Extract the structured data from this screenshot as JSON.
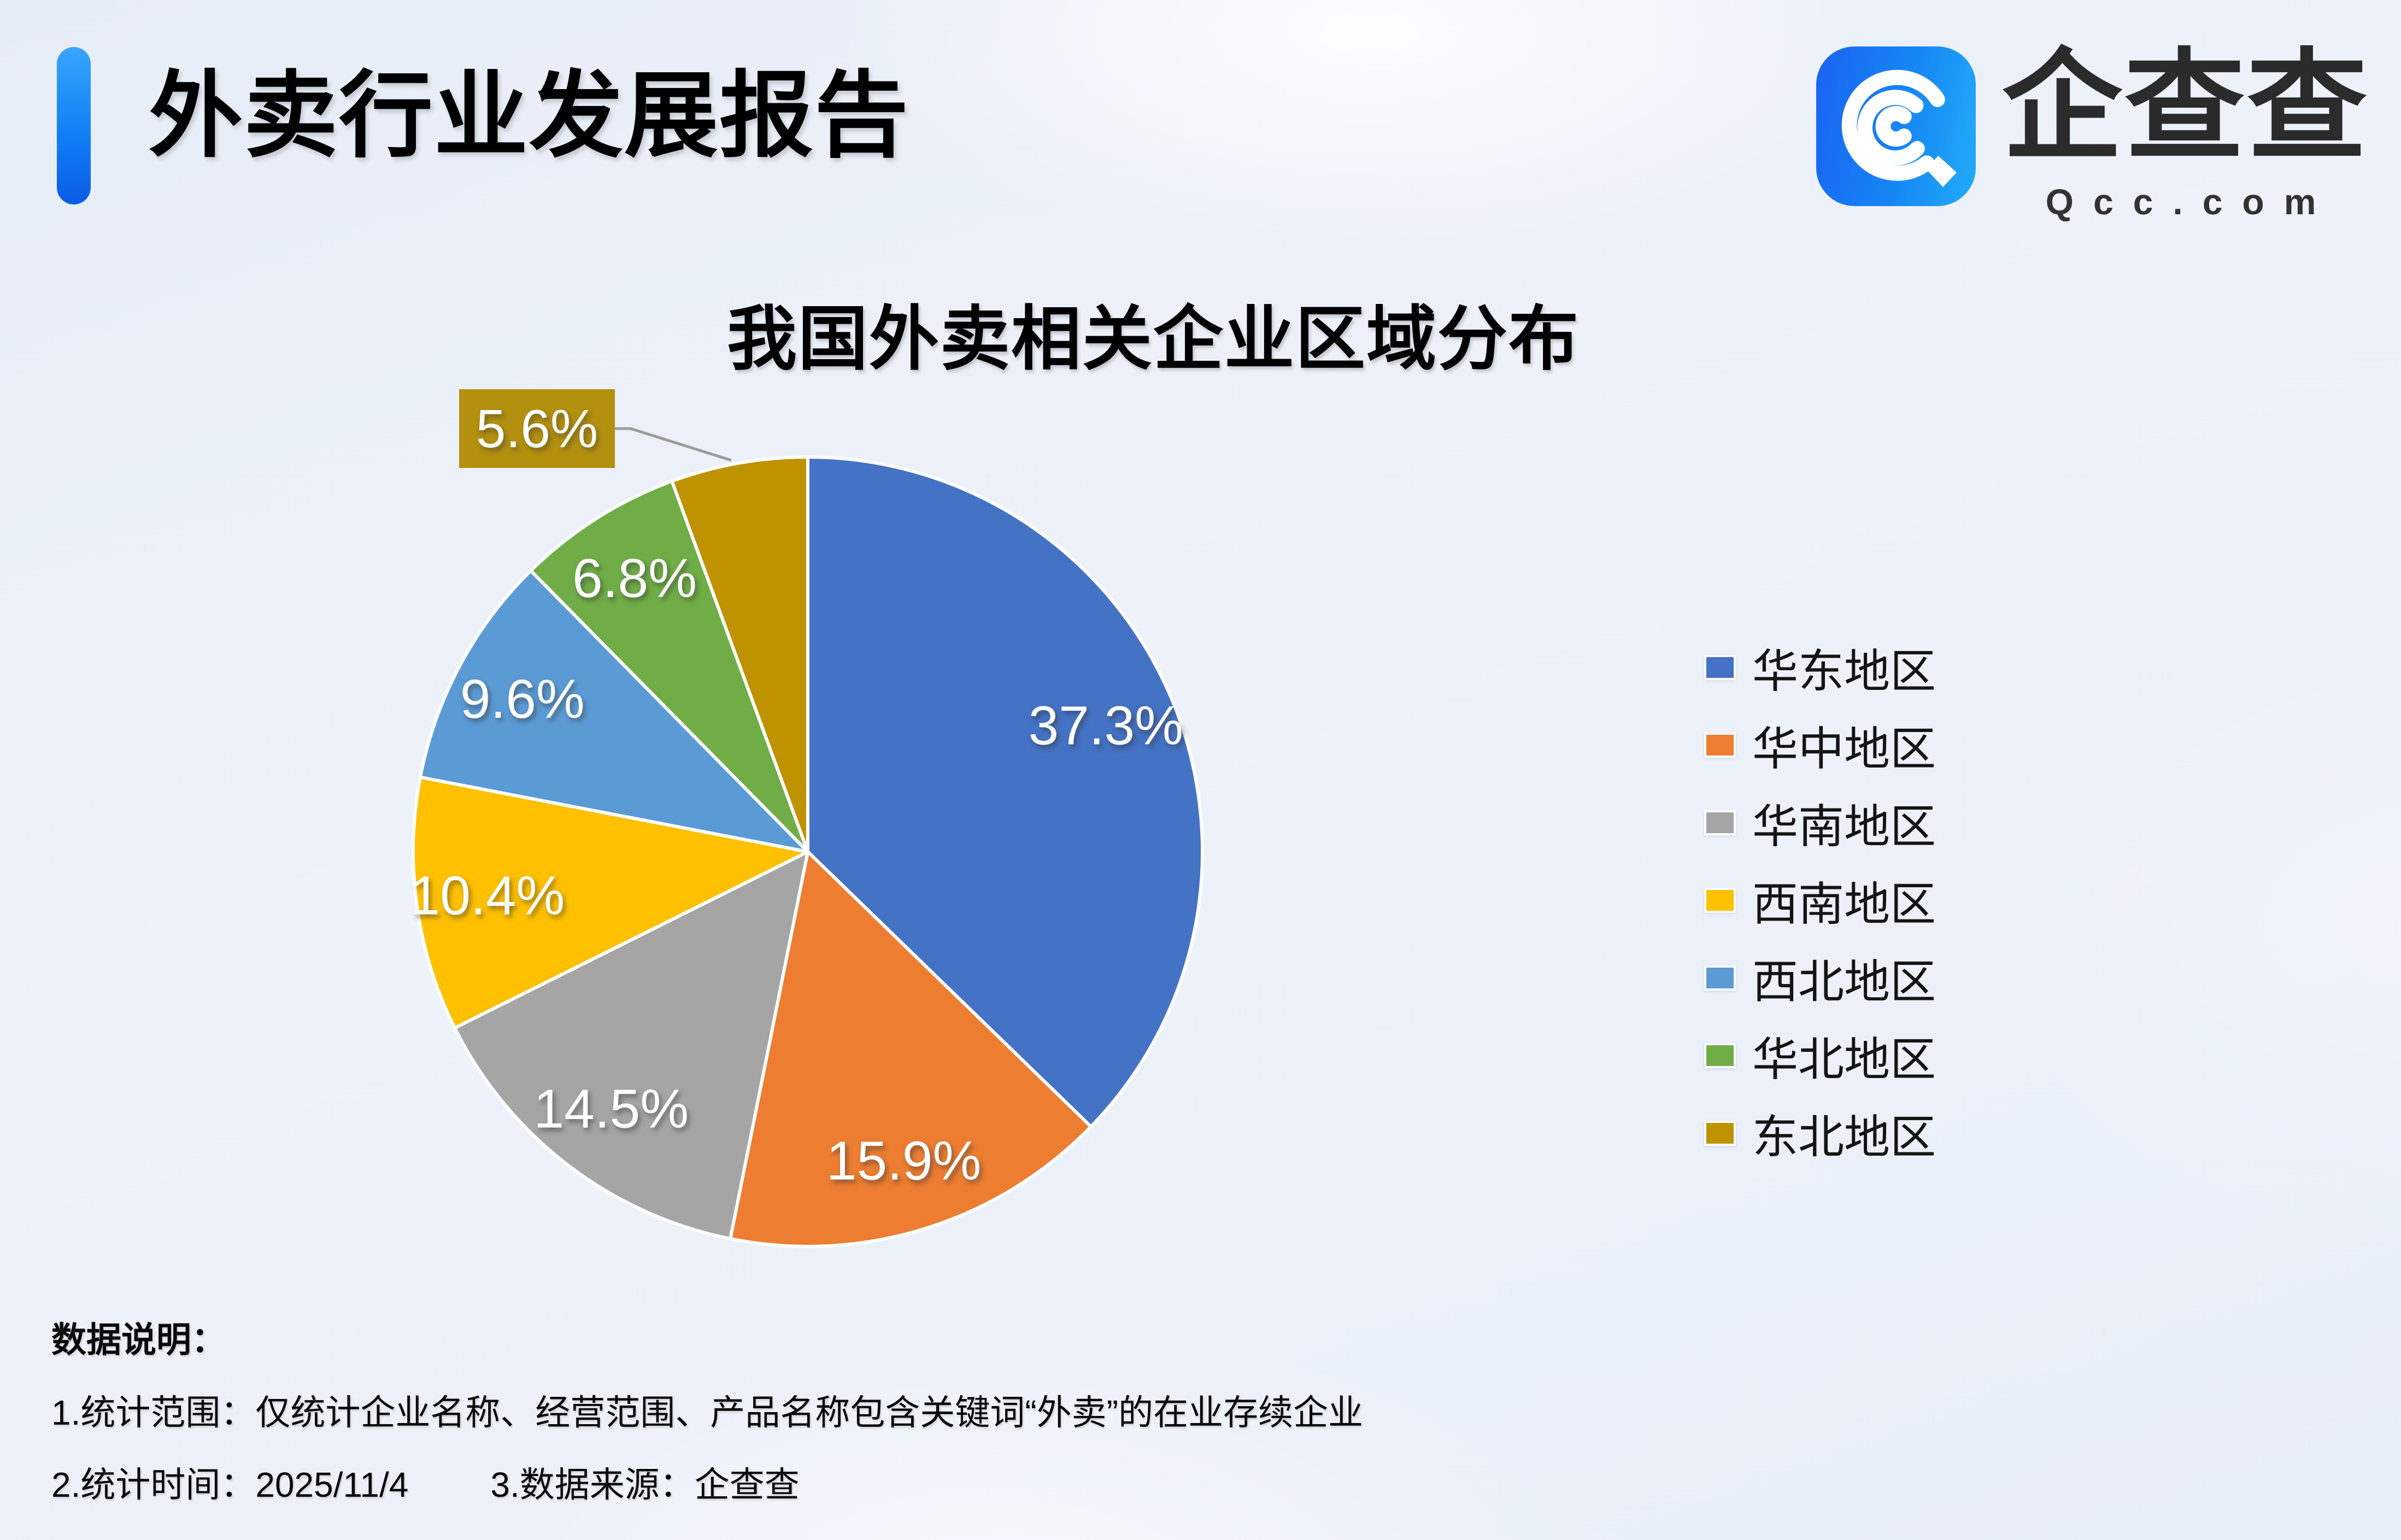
{
  "page": {
    "title": "外卖行业发展报告"
  },
  "brand": {
    "name": "企查查",
    "domain": "Qcc.com",
    "icon": "qcc-magnifier-logo-icon",
    "icon_gradient": [
      "#1A63F1",
      "#22ACF9"
    ]
  },
  "chart_data": {
    "type": "pie",
    "title": "我国外卖相关企业区域分布",
    "categories": [
      "华东地区",
      "华中地区",
      "华南地区",
      "西南地区",
      "西北地区",
      "华北地区",
      "东北地区"
    ],
    "values": [
      37.3,
      15.9,
      14.5,
      10.4,
      9.6,
      6.8,
      5.6
    ],
    "labels": [
      "37.3%",
      "15.9%",
      "14.5%",
      "10.4%",
      "9.6%",
      "6.8%",
      "5.6%"
    ],
    "colors": [
      "#4472C4",
      "#ED7D31",
      "#A5A5A5",
      "#FFC000",
      "#5B9BD5",
      "#70AD47",
      "#BF9200"
    ],
    "start_angle_deg": 0,
    "direction": "clockwise",
    "legend_position": "right",
    "label_radius_factor": 0.82,
    "callout": {
      "index": 6,
      "label": "5.6%",
      "box_color": "#B3900E",
      "line_color": "#9B9B9B"
    }
  },
  "notes": {
    "heading": "数据说明：",
    "line1": "1.统计范围：仅统计企业名称、经营范围、产品名称包含关键词“外卖”的在业存续企业",
    "line2_part1": "2.统计时间：2025/11/4",
    "line2_part2": "3.数据来源：企查查"
  }
}
